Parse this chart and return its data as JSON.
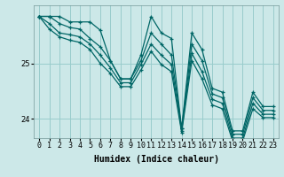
{
  "xlabel": "Humidex (Indice chaleur)",
  "bg_color": "#cce8e8",
  "grid_color": "#99cccc",
  "line_color": "#006666",
  "xlim": [
    -0.5,
    23.5
  ],
  "ylim": [
    23.65,
    26.05
  ],
  "yticks": [
    24,
    25
  ],
  "xticks": [
    0,
    1,
    2,
    3,
    4,
    5,
    6,
    7,
    8,
    9,
    10,
    11,
    12,
    13,
    14,
    15,
    16,
    17,
    18,
    19,
    20,
    21,
    22,
    23
  ],
  "series": [
    [
      25.85,
      25.85,
      25.85,
      25.75,
      25.75,
      25.75,
      25.6,
      25.05,
      24.72,
      24.72,
      25.15,
      25.85,
      25.55,
      25.45,
      23.82,
      25.55,
      25.25,
      24.55,
      24.48,
      23.78,
      23.78,
      24.48,
      24.22,
      24.22
    ],
    [
      25.85,
      25.85,
      25.72,
      25.65,
      25.62,
      25.45,
      25.3,
      25.05,
      24.72,
      24.72,
      25.05,
      25.55,
      25.35,
      25.15,
      23.82,
      25.35,
      25.05,
      24.45,
      24.38,
      23.72,
      23.72,
      24.38,
      24.15,
      24.15
    ],
    [
      25.85,
      25.72,
      25.55,
      25.52,
      25.48,
      25.35,
      25.15,
      24.92,
      24.65,
      24.65,
      24.98,
      25.35,
      25.15,
      24.98,
      23.78,
      25.18,
      24.85,
      24.35,
      24.28,
      23.65,
      23.65,
      24.28,
      24.08,
      24.08
    ],
    [
      25.85,
      25.62,
      25.48,
      25.42,
      25.38,
      25.25,
      25.0,
      24.82,
      24.58,
      24.58,
      24.88,
      25.22,
      24.98,
      24.85,
      23.75,
      25.05,
      24.72,
      24.25,
      24.18,
      23.6,
      23.6,
      24.18,
      24.02,
      24.02
    ]
  ]
}
